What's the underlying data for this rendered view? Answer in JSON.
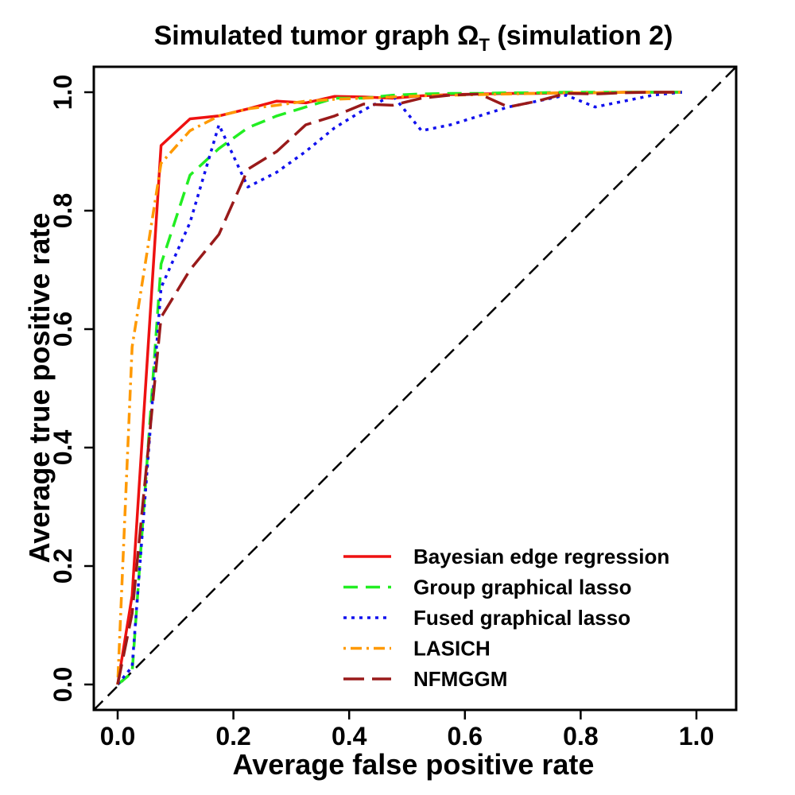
{
  "chart_data": {
    "type": "line",
    "title_main": "Simulated tumor graph Ω",
    "title_sub": "T",
    "title_suffix": " (simulation 2)",
    "xlabel": "Average false positive rate",
    "ylabel": "Average true positive rate",
    "xlim": [
      0,
      1
    ],
    "ylim": [
      0,
      1
    ],
    "xticks": [
      0,
      0.2,
      0.4,
      0.6,
      0.8,
      1
    ],
    "xtick_labels": [
      "0.0",
      "0.2",
      "0.4",
      "0.6",
      "0.8",
      "1.0"
    ],
    "yticks": [
      0,
      0.2,
      0.4,
      0.6,
      0.8,
      1
    ],
    "ytick_labels": [
      "0.0",
      "0.2",
      "0.4",
      "0.6",
      "0.8",
      "1.0"
    ],
    "legend_position": "bottom-right",
    "diagonal": {
      "x": [
        0,
        1
      ],
      "y": [
        0,
        1
      ],
      "color": "#000000",
      "style": "dashed"
    },
    "series": [
      {
        "name": "Bayesian edge regression",
        "color": "#ee1111",
        "style": "solid",
        "x": [
          0.0,
          0.025,
          0.075,
          0.125,
          0.175,
          0.225,
          0.275,
          0.325,
          0.375,
          0.425,
          0.475,
          0.525,
          0.575,
          0.625,
          0.675,
          0.725,
          0.775,
          0.825,
          0.875,
          0.925,
          0.975
        ],
        "y": [
          0.0,
          0.15,
          0.91,
          0.955,
          0.96,
          0.972,
          0.985,
          0.982,
          0.993,
          0.992,
          0.99,
          0.994,
          0.996,
          0.997,
          0.998,
          0.998,
          0.999,
          0.999,
          1.0,
          1.0,
          1.0
        ]
      },
      {
        "name": "Group graphical lasso",
        "color": "#22ee22",
        "style": "dashed",
        "x": [
          0.0,
          0.025,
          0.075,
          0.125,
          0.175,
          0.225,
          0.275,
          0.325,
          0.375,
          0.425,
          0.475,
          0.525,
          0.575,
          0.625,
          0.675,
          0.725,
          0.775,
          0.825,
          0.875,
          0.925,
          0.975
        ],
        "y": [
          0.0,
          0.02,
          0.71,
          0.86,
          0.905,
          0.94,
          0.96,
          0.975,
          0.99,
          0.99,
          0.995,
          0.997,
          0.998,
          0.998,
          0.999,
          0.999,
          1.0,
          1.0,
          1.0,
          1.0,
          1.0
        ]
      },
      {
        "name": "Fused graphical lasso",
        "color": "#1111ee",
        "style": "dotted",
        "x": [
          0.0,
          0.025,
          0.075,
          0.125,
          0.175,
          0.225,
          0.275,
          0.325,
          0.375,
          0.425,
          0.475,
          0.525,
          0.575,
          0.625,
          0.675,
          0.725,
          0.775,
          0.825,
          0.875,
          0.925,
          0.975
        ],
        "y": [
          0.0,
          0.03,
          0.67,
          0.78,
          0.945,
          0.84,
          0.865,
          0.9,
          0.94,
          0.97,
          0.995,
          0.935,
          0.945,
          0.96,
          0.975,
          0.985,
          0.995,
          0.975,
          0.985,
          0.995,
          1.0
        ]
      },
      {
        "name": "LASICH",
        "color": "#ff9900",
        "style": "dotdash",
        "x": [
          0.0,
          0.025,
          0.075,
          0.125,
          0.175,
          0.225,
          0.275,
          0.325,
          0.375,
          0.425,
          0.475,
          0.525,
          0.575,
          0.625,
          0.675,
          0.725,
          0.775,
          0.825,
          0.875,
          0.925,
          0.975
        ],
        "y": [
          0.0,
          0.57,
          0.88,
          0.935,
          0.96,
          0.972,
          0.978,
          0.985,
          0.988,
          0.99,
          0.992,
          0.994,
          0.995,
          0.996,
          0.997,
          0.998,
          0.999,
          0.999,
          1.0,
          1.0,
          1.0
        ]
      },
      {
        "name": "NFMGGM",
        "color": "#991a1a",
        "style": "longdash",
        "x": [
          0.0,
          0.025,
          0.075,
          0.125,
          0.175,
          0.225,
          0.275,
          0.325,
          0.375,
          0.425,
          0.475,
          0.525,
          0.575,
          0.625,
          0.675,
          0.725,
          0.775,
          0.825,
          0.875,
          0.925,
          0.975
        ],
        "y": [
          0.0,
          0.12,
          0.62,
          0.7,
          0.76,
          0.87,
          0.9,
          0.945,
          0.96,
          0.98,
          0.978,
          0.99,
          0.995,
          0.997,
          0.975,
          0.985,
          0.998,
          0.997,
          0.999,
          1.0,
          1.0
        ]
      }
    ]
  }
}
